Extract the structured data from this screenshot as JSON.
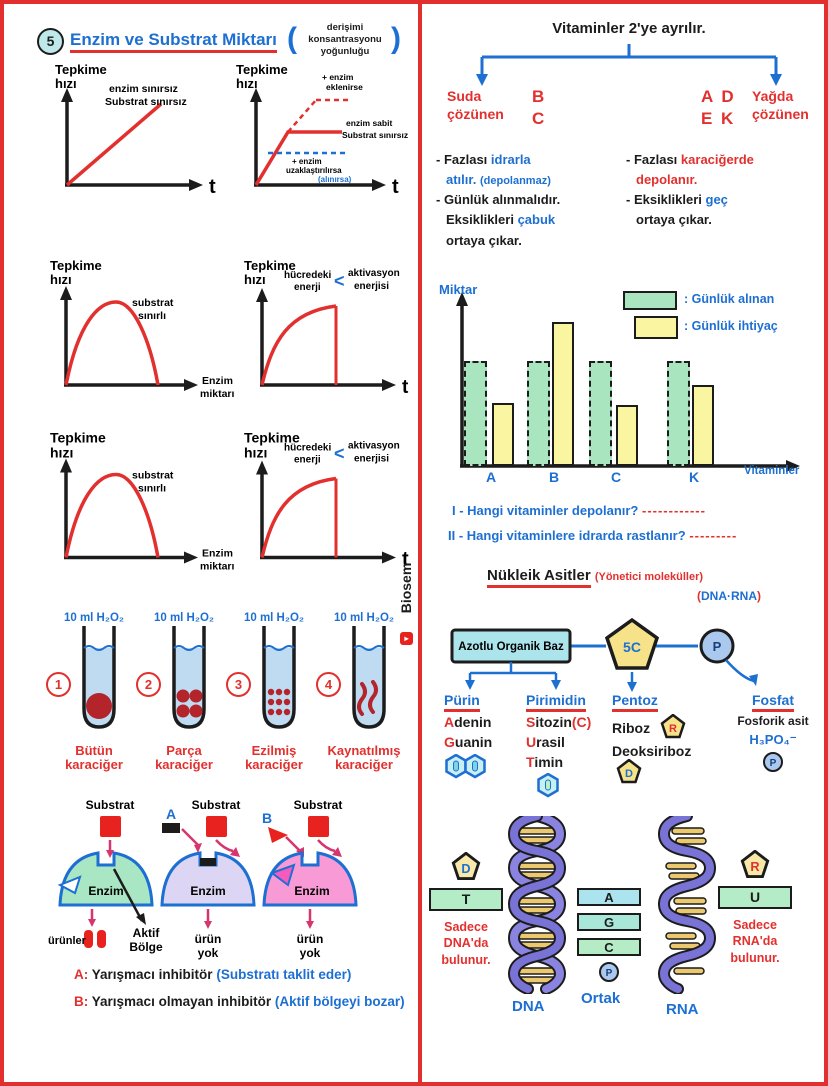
{
  "colors": {
    "red": "#e2302e",
    "blue": "#1d6fd2",
    "black": "#1c1c1c",
    "liver": "#b3242b",
    "bar_green": "#a9e5bf",
    "bar_yellow": "#f9f5a0",
    "cyan_box": "#ace4ec",
    "enzyme_green": "#a9e6c3",
    "enzyme_lavender": "#dcd6f4",
    "enzyme_pink": "#f89ad6",
    "pentagon_yellow": "#f6e289",
    "p_circle": "#abc8ee",
    "helix_purple": "#8179de",
    "liquid_blue": "#bedbf2"
  },
  "header": {
    "number": "5",
    "title": "Enzim ve Substrat Miktarı",
    "note_line1": "derişimi",
    "note_line2": "konsantrasyonu",
    "note_line3": "yoğunluğu"
  },
  "graphs": {
    "y1": "Tepkime",
    "y2": "hızı",
    "t": "t",
    "g1_l1": "enzim sınırsız",
    "g1_l2": "Substrat sınırsız",
    "g2_add1": "+ enzim",
    "g2_add2": "eklenirse",
    "g2_flat1": "enzim sabit",
    "g2_flat2": "Substrat sınırsız",
    "g2_rem1": "+ enzim",
    "g2_rem2": "uzaklaştırılırsa",
    "g2_rem3": "(alınırsa)",
    "g3_l1": "substrat",
    "g3_l2": "sınırlı",
    "g3_x1": "Enzim",
    "g3_x2": "miktarı",
    "g4_l1": "hücredeki",
    "g4_l2": "enerji",
    "g4_lt": "<",
    "g4_r1": "aktivasyon",
    "g4_r2": "enerjisi"
  },
  "tubes": {
    "label": "10 ml H₂O₂",
    "items": [
      {
        "num": "1",
        "l1": "Bütün",
        "l2": "karaciğer"
      },
      {
        "num": "2",
        "l1": "Parça",
        "l2": "karaciğer"
      },
      {
        "num": "3",
        "l1": "Ezilmiş",
        "l2": "karaciğer"
      },
      {
        "num": "4",
        "l1": "Kaynatılmış",
        "l2": "karaciğer"
      }
    ]
  },
  "enzymes": {
    "substrat": "Substrat",
    "enzim": "Enzim",
    "urunler": "ürünler",
    "aktif1": "Aktif",
    "aktif2": "Bölge",
    "yok1": "ürün",
    "yok2": "yok",
    "a": "A",
    "b": "B"
  },
  "inhibitors": {
    "a_key": "A:",
    "a_text": "Yarışmacı inhibitör",
    "a_note": "(Substratı taklit eder)",
    "b_key": "B:",
    "b_text": "Yarışmacı olmayan inhibitör",
    "b_note": "(Aktif bölgeyi bozar)"
  },
  "vitamins": {
    "title": "Vitaminler 2'ye ayrılır.",
    "water_name1": "Suda",
    "water_name2": "çözünen",
    "water_v1": "B",
    "water_v2": "C",
    "fat_v1": "A D",
    "fat_v2": "E K",
    "fat_name1": "Yağda",
    "fat_name2": "çözünen",
    "wn1a": "- Fazlası ",
    "wn1b": "idrarla",
    "wn1c": "atılır. ",
    "wn1d": "(depolanmaz)",
    "wn2": "- Günlük alınmalıdır.",
    "wn3a": "Eksiklikleri ",
    "wn3b": "çabuk",
    "wn4": "ortaya çıkar.",
    "fn1a": "- Fazlası ",
    "fn1b": "karaciğerde",
    "fn1c": "depolanır.",
    "fn2a": "- Eksiklikleri ",
    "fn2b": "geç",
    "fn3": "ortaya çıkar."
  },
  "chart": {
    "ylabel": "Miktar",
    "xlabel": "Vitaminler",
    "legend1": ": Günlük alınan",
    "legend2": ": Günlük ihtiyaç"
  },
  "chart_data": {
    "type": "bar",
    "categories": [
      "A",
      "B",
      "C",
      "K"
    ],
    "series": [
      {
        "name": "Günlük alınan",
        "color": "#a9e5bf",
        "style": "dashed",
        "values": [
          100,
          100,
          100,
          100
        ]
      },
      {
        "name": "Günlük ihtiyaç",
        "color": "#f9f5a0",
        "style": "solid",
        "values": [
          60,
          137,
          58,
          77
        ]
      }
    ],
    "title": "",
    "xlabel": "Vitaminler",
    "ylabel": "Miktar",
    "ylim": [
      0,
      150
    ],
    "grid": false,
    "legend_position": "top-right"
  },
  "questions": {
    "q1n": "I - ",
    "q1": "Hangi vitaminler depolanır? ",
    "q1_blank": "------------",
    "q2n": "II - ",
    "q2": "Hangi vitaminlere idrarda rastlanır? ",
    "q2_blank": "---------"
  },
  "nucleic": {
    "title": "Nükleik Asitler",
    "note1": "(Yönetici moleküller)",
    "paren_open": "(",
    "dna_rna": "DNA·RNA",
    "paren_close": ")",
    "baz": "Azotlu Organik Baz",
    "sugar": "5C",
    "p": "P",
    "purin_title": "Pürin",
    "adenin_a": "A",
    "adenin_rest": "denin",
    "guanin_g": "G",
    "guanin_rest": "uanin",
    "pirimidin_title": "Pirimidin",
    "sitozin_s": "S",
    "sitozin_rest": "itozin",
    "sitozin_c": "(C)",
    "urasil_u": "U",
    "urasil_rest": "rasil",
    "timin_t": "T",
    "timin_rest": "imin",
    "pentoz_title": "Pentoz",
    "riboz": "Riboz",
    "riboz_icon": "R",
    "deoksiriboz": "Deoksiriboz",
    "deoksiriboz_icon": "D",
    "fosfat_title": "Fosfat",
    "fosfat_line": "Fosforik asit",
    "formula": "H₃PO₄⁻",
    "fosfat_icon": "P"
  },
  "dna_rna": {
    "left_icon": "D",
    "left_base": "T",
    "left_note1": "Sadece",
    "left_note2": "DNA'da",
    "left_note3": "bulunur.",
    "right_icon": "R",
    "right_base": "U",
    "right_note1": "Sadece",
    "right_note2": "RNA'da",
    "right_note3": "bulunur.",
    "common1": "A",
    "common2": "G",
    "common3": "C",
    "common_p": "P",
    "ortak": "Ortak",
    "dna_label": "DNA",
    "rna_label": "RNA"
  },
  "watermark": "Biosem"
}
